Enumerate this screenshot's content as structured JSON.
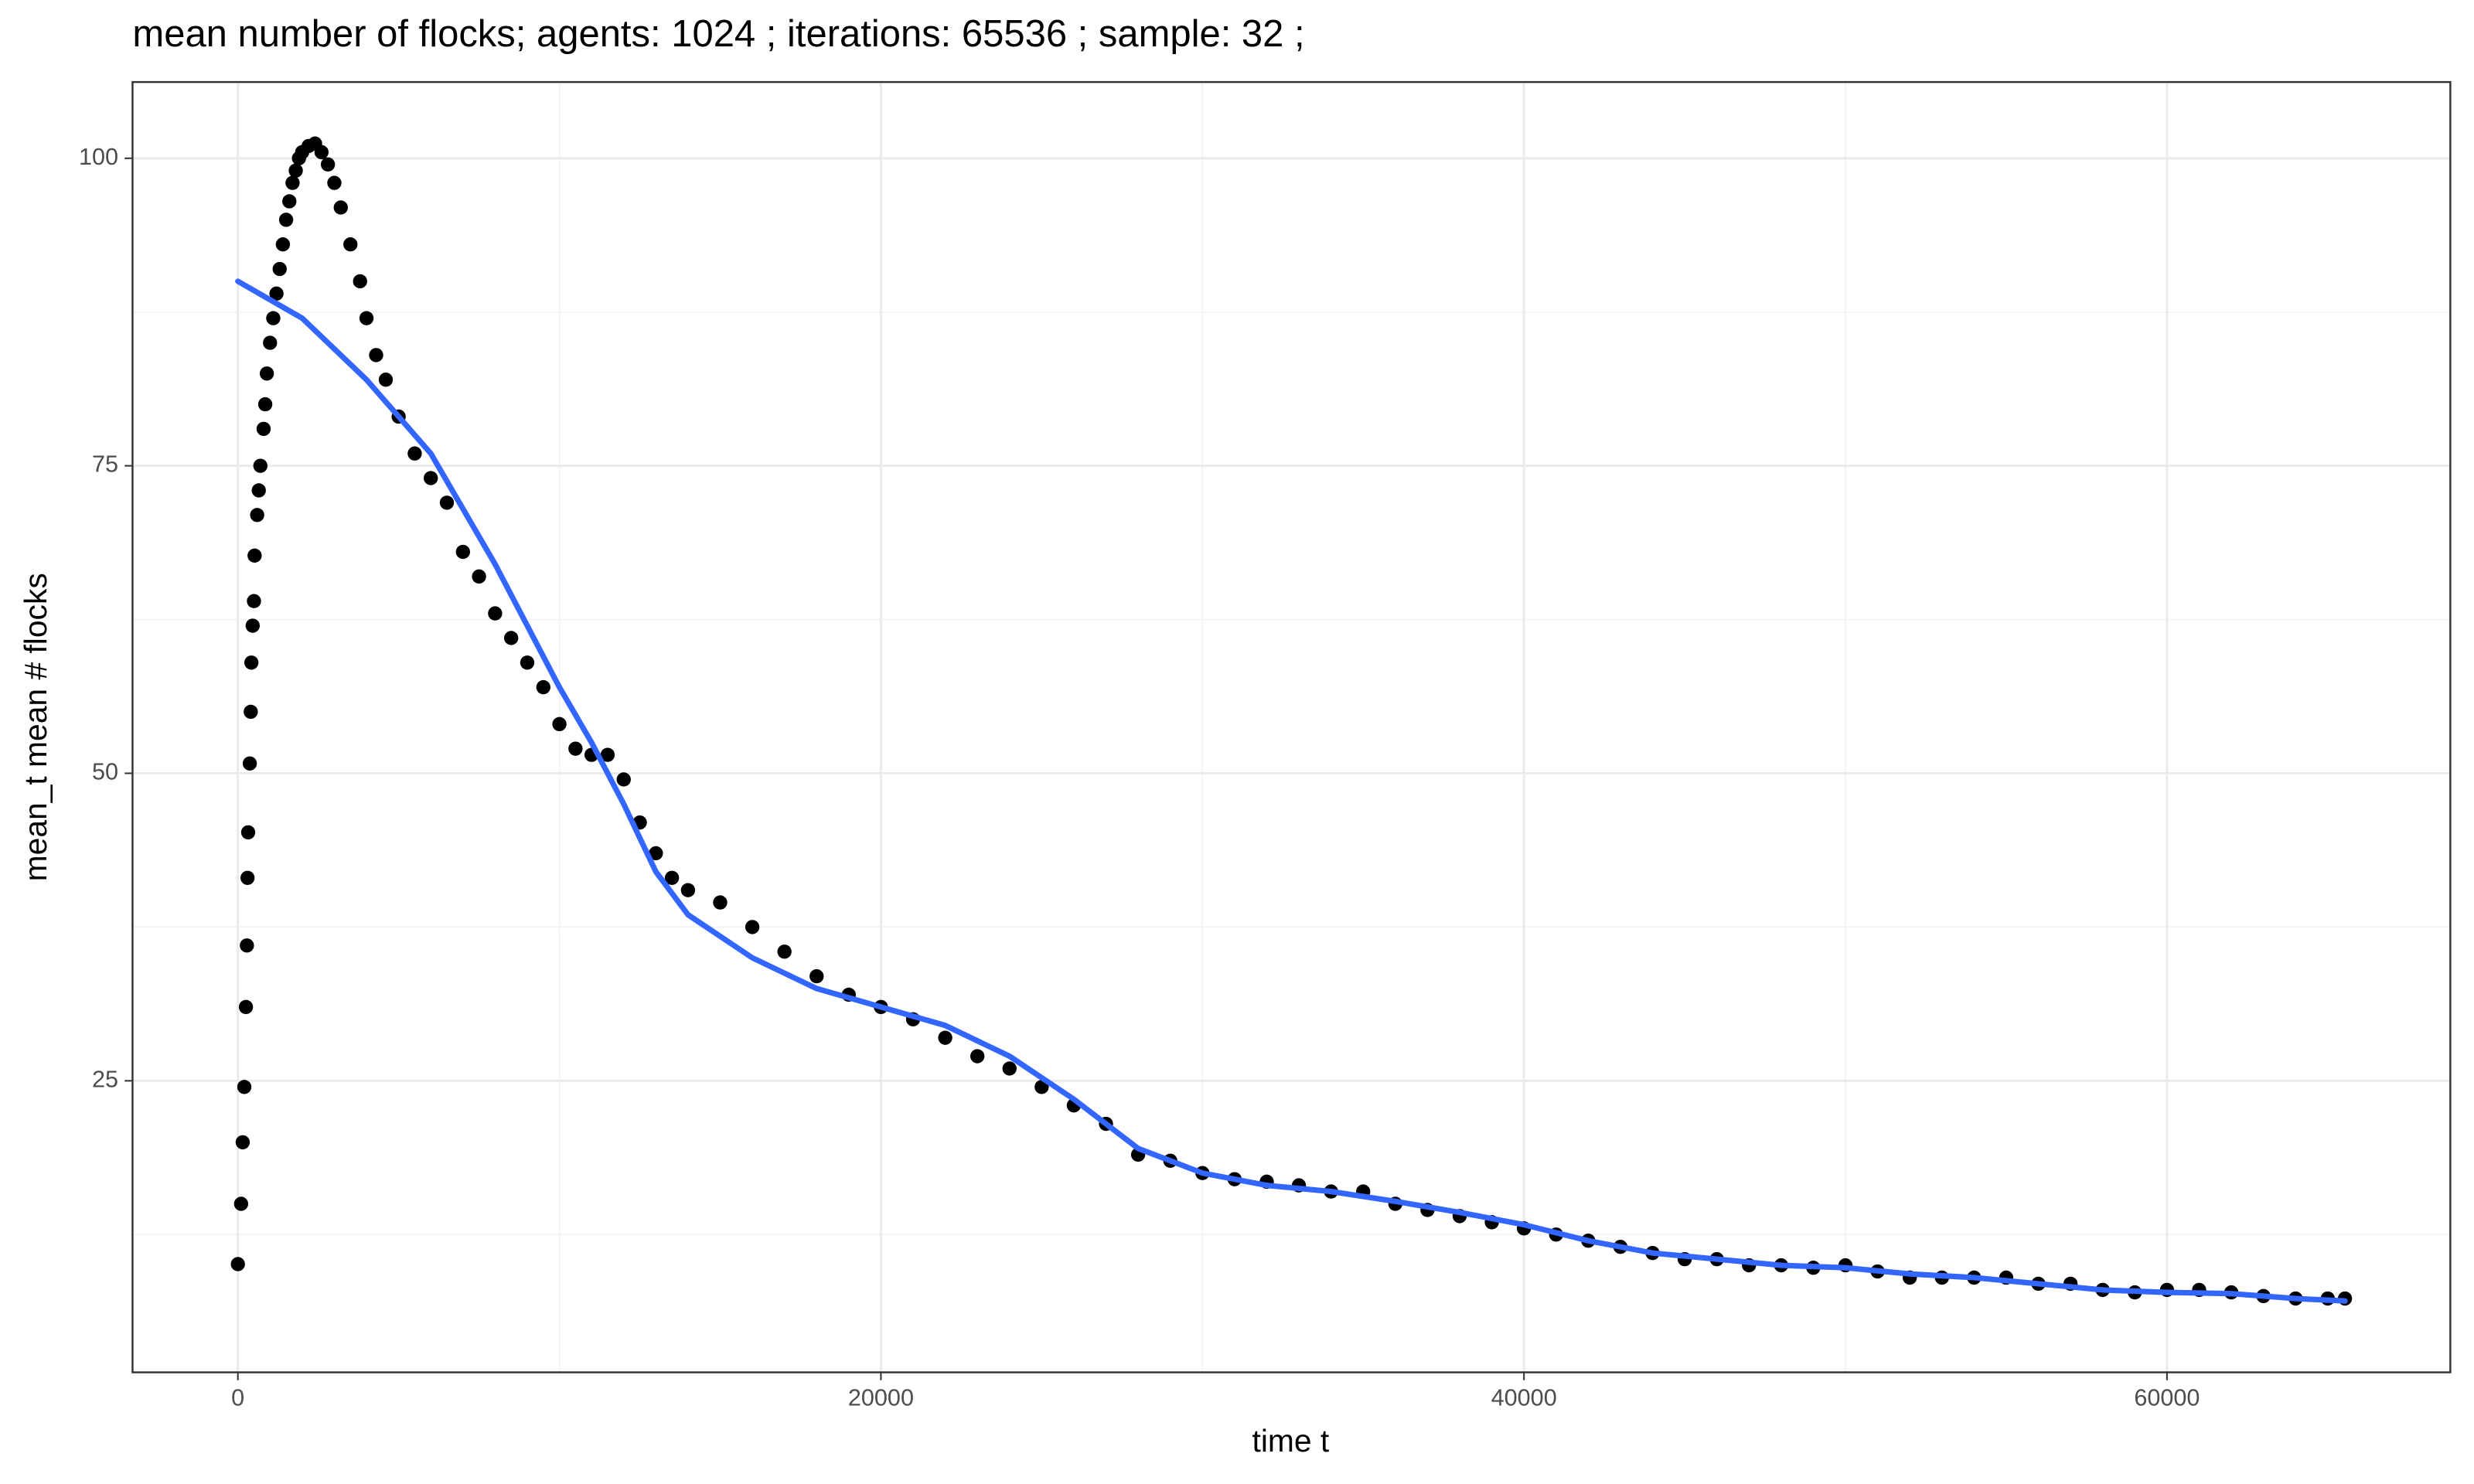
{
  "chart_data": {
    "type": "scatter",
    "title": "mean number of flocks; agents: 1024 ; iterations: 65536 ; sample: 32 ;",
    "xlabel": "time t",
    "ylabel": "mean_t mean # flocks",
    "xlim": [
      -3276.8,
      68812.8
    ],
    "ylim": [
      1.3,
      106.2
    ],
    "xticks": [
      0,
      20000,
      40000,
      60000
    ],
    "yticks": [
      25,
      50,
      75,
      100
    ],
    "xminor": [
      10000,
      30000,
      50000
    ],
    "yminor": [
      12.5,
      37.5,
      62.5,
      87.5
    ],
    "grid": true,
    "series": [
      {
        "type": "scatter",
        "color": "#000000",
        "x": [
          0,
          100,
          150,
          200,
          250,
          280,
          300,
          320,
          370,
          400,
          420,
          460,
          500,
          520,
          600,
          650,
          700,
          800,
          850,
          900,
          1000,
          1100,
          1200,
          1300,
          1400,
          1500,
          1600,
          1700,
          1800,
          1900,
          2000,
          2200,
          2400,
          2600,
          2800,
          3000,
          3200,
          3500,
          3800,
          4000,
          4300,
          4600,
          5000,
          5500,
          6000,
          6500,
          7000,
          7500,
          8000,
          8500,
          9000,
          9500,
          10000,
          10500,
          11000,
          11500,
          12000,
          12500,
          13000,
          13500,
          14000,
          15000,
          16000,
          17000,
          18000,
          19000,
          20000,
          21000,
          22000,
          23000,
          24000,
          25000,
          26000,
          27000,
          28000,
          29000,
          30000,
          31000,
          32000,
          33000,
          34000,
          35000,
          36000,
          37000,
          38000,
          39000,
          40000,
          41000,
          42000,
          43000,
          44000,
          45000,
          46000,
          47000,
          48000,
          49000,
          50000,
          51000,
          52000,
          53000,
          54000,
          55000,
          56000,
          57000,
          58000,
          59000,
          60000,
          61000,
          62000,
          63000,
          64000,
          65000,
          65536
        ],
        "values": [
          10.1,
          15,
          20,
          24.5,
          31,
          36,
          41.5,
          45.2,
          50.8,
          55,
          59,
          62,
          64,
          67.7,
          71,
          73,
          75,
          78,
          80,
          82.5,
          85,
          87,
          89,
          91,
          93,
          95,
          96.5,
          98,
          99,
          100,
          100.5,
          101,
          101.2,
          100.5,
          99.5,
          98,
          96,
          93,
          90,
          87,
          84,
          82,
          79,
          76,
          74,
          72,
          68,
          66,
          63,
          61,
          59,
          57,
          54,
          52,
          51.5,
          51.5,
          49.5,
          46,
          43.5,
          41.5,
          40.5,
          39.5,
          37.5,
          35.5,
          33.5,
          32,
          31,
          30,
          28.5,
          27,
          26,
          24.5,
          23,
          21.5,
          19,
          18.5,
          17.5,
          17,
          16.8,
          16.5,
          16,
          16,
          15,
          14.5,
          14,
          13.5,
          13,
          12.5,
          12,
          11.5,
          11,
          10.5,
          10.5,
          10,
          10,
          9.8,
          10,
          9.5,
          9,
          9,
          9,
          9,
          8.5,
          8.5,
          8,
          7.8,
          8,
          8,
          7.8,
          7.5,
          7.3,
          7.3,
          7.3
        ]
      },
      {
        "type": "line",
        "color": "#3366ff",
        "x": [
          0,
          2000,
          4000,
          6000,
          8000,
          10000,
          11000,
          12000,
          13000,
          14000,
          16000,
          18000,
          20000,
          22000,
          24000,
          26000,
          28000,
          30000,
          32000,
          34000,
          36000,
          38000,
          40000,
          42000,
          44000,
          46000,
          48000,
          50000,
          52000,
          54000,
          56000,
          58000,
          60000,
          62000,
          64000,
          65536
        ],
        "values": [
          90,
          87,
          82,
          76,
          67,
          57,
          52.5,
          47.5,
          42,
          38.5,
          35,
          32.5,
          31,
          29.5,
          27,
          23.5,
          19.5,
          17.5,
          16.5,
          16,
          15.2,
          14.3,
          13.3,
          12,
          11,
          10.5,
          10,
          9.8,
          9.3,
          9,
          8.5,
          8,
          7.8,
          7.7,
          7.3,
          7.1
        ]
      }
    ]
  }
}
